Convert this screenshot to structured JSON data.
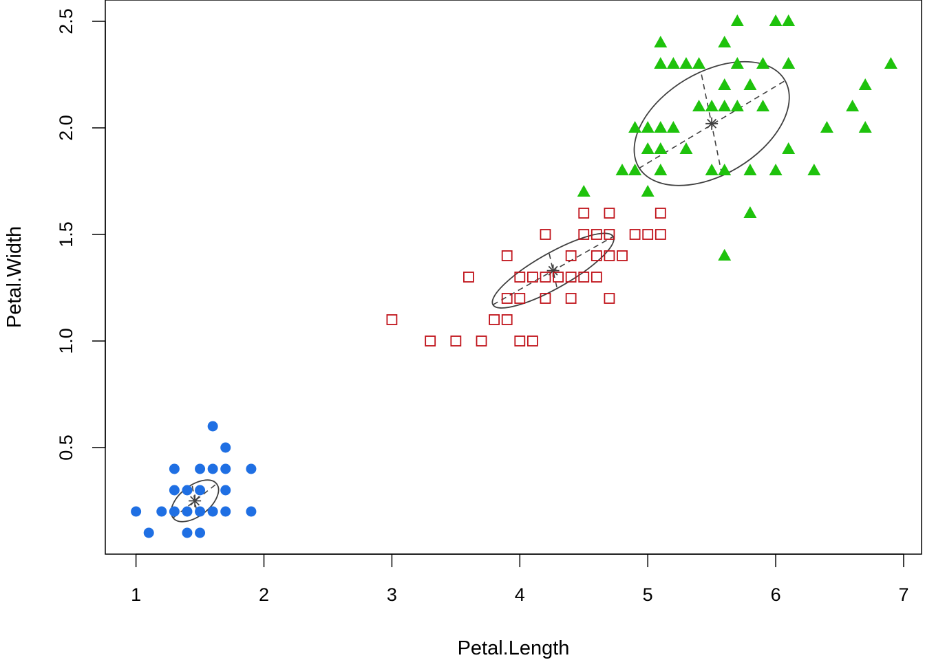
{
  "chart_data": {
    "type": "scatter",
    "xlabel": "Petal.Length",
    "ylabel": "Petal.Width",
    "xlim": [
      0.76,
      7.14
    ],
    "ylim": [
      0.0,
      2.6
    ],
    "x_ticks": [
      1,
      2,
      3,
      4,
      5,
      6,
      7
    ],
    "y_ticks": [
      0.5,
      1.0,
      1.5,
      2.0,
      2.5
    ],
    "x_tick_labels": [
      "1",
      "2",
      "3",
      "4",
      "5",
      "6",
      "7"
    ],
    "y_tick_labels": [
      "0.5",
      "1.0",
      "1.5",
      "2.0",
      "2.5"
    ],
    "grid": false,
    "legend": "none",
    "series": [
      {
        "marker": "filled-circle",
        "color": "#1f6fe3",
        "points": [
          [
            1.0,
            0.2
          ],
          [
            1.1,
            0.1
          ],
          [
            1.2,
            0.2
          ],
          [
            1.3,
            0.2
          ],
          [
            1.3,
            0.3
          ],
          [
            1.3,
            0.4
          ],
          [
            1.4,
            0.1
          ],
          [
            1.4,
            0.2
          ],
          [
            1.4,
            0.3
          ],
          [
            1.5,
            0.1
          ],
          [
            1.5,
            0.2
          ],
          [
            1.5,
            0.3
          ],
          [
            1.5,
            0.4
          ],
          [
            1.6,
            0.2
          ],
          [
            1.6,
            0.4
          ],
          [
            1.6,
            0.6
          ],
          [
            1.7,
            0.2
          ],
          [
            1.7,
            0.3
          ],
          [
            1.7,
            0.4
          ],
          [
            1.7,
            0.5
          ],
          [
            1.9,
            0.2
          ],
          [
            1.9,
            0.4
          ]
        ],
        "centroid": [
          1.46,
          0.25
        ],
        "ellipse": {
          "center": [
            1.46,
            0.25
          ],
          "axis1": [
            [
              1.29,
              0.17
            ],
            [
              1.63,
              0.33
            ]
          ],
          "axis2": [
            [
              1.44,
              0.32
            ],
            [
              1.48,
              0.18
            ]
          ]
        }
      },
      {
        "marker": "open-square",
        "color": "#c0121a",
        "points": [
          [
            3.0,
            1.1
          ],
          [
            3.3,
            1.0
          ],
          [
            3.5,
            1.0
          ],
          [
            3.6,
            1.3
          ],
          [
            3.7,
            1.0
          ],
          [
            3.8,
            1.1
          ],
          [
            3.9,
            1.1
          ],
          [
            3.9,
            1.2
          ],
          [
            3.9,
            1.4
          ],
          [
            4.0,
            1.0
          ],
          [
            4.0,
            1.2
          ],
          [
            4.0,
            1.3
          ],
          [
            4.1,
            1.0
          ],
          [
            4.1,
            1.3
          ],
          [
            4.2,
            1.2
          ],
          [
            4.2,
            1.3
          ],
          [
            4.2,
            1.5
          ],
          [
            4.3,
            1.3
          ],
          [
            4.4,
            1.2
          ],
          [
            4.4,
            1.3
          ],
          [
            4.4,
            1.4
          ],
          [
            4.5,
            1.3
          ],
          [
            4.5,
            1.5
          ],
          [
            4.5,
            1.6
          ],
          [
            4.6,
            1.3
          ],
          [
            4.6,
            1.4
          ],
          [
            4.6,
            1.5
          ],
          [
            4.7,
            1.2
          ],
          [
            4.7,
            1.4
          ],
          [
            4.7,
            1.5
          ],
          [
            4.7,
            1.6
          ],
          [
            4.8,
            1.4
          ],
          [
            4.9,
            1.5
          ],
          [
            5.0,
            1.5
          ],
          [
            5.1,
            1.5
          ],
          [
            5.1,
            1.6
          ]
        ],
        "centroid": [
          4.26,
          1.33
        ],
        "ellipse": {
          "center": [
            4.26,
            1.33
          ],
          "axis1": [
            [
              3.79,
              1.17
            ],
            [
              4.73,
              1.49
            ]
          ],
          "axis2": [
            [
              4.23,
              1.41
            ],
            [
              4.29,
              1.25
            ]
          ]
        }
      },
      {
        "marker": "filled-triangle",
        "color": "#1ec20c",
        "points": [
          [
            4.5,
            1.7
          ],
          [
            4.8,
            1.8
          ],
          [
            4.9,
            1.8
          ],
          [
            4.9,
            2.0
          ],
          [
            5.0,
            1.7
          ],
          [
            5.0,
            1.9
          ],
          [
            5.0,
            2.0
          ],
          [
            5.1,
            1.8
          ],
          [
            5.1,
            1.9
          ],
          [
            5.1,
            2.0
          ],
          [
            5.1,
            2.3
          ],
          [
            5.1,
            2.4
          ],
          [
            5.2,
            2.0
          ],
          [
            5.2,
            2.3
          ],
          [
            5.3,
            2.3
          ],
          [
            5.3,
            1.9
          ],
          [
            5.4,
            2.1
          ],
          [
            5.4,
            2.3
          ],
          [
            5.5,
            1.8
          ],
          [
            5.5,
            2.1
          ],
          [
            5.6,
            1.4
          ],
          [
            5.6,
            1.8
          ],
          [
            5.6,
            2.1
          ],
          [
            5.6,
            2.2
          ],
          [
            5.6,
            2.4
          ],
          [
            5.7,
            2.1
          ],
          [
            5.7,
            2.3
          ],
          [
            5.7,
            2.5
          ],
          [
            5.8,
            1.6
          ],
          [
            5.8,
            1.8
          ],
          [
            5.8,
            2.2
          ],
          [
            5.9,
            2.1
          ],
          [
            5.9,
            2.3
          ],
          [
            6.0,
            1.8
          ],
          [
            6.0,
            2.5
          ],
          [
            6.1,
            1.9
          ],
          [
            6.1,
            2.3
          ],
          [
            6.1,
            2.5
          ],
          [
            6.3,
            1.8
          ],
          [
            6.4,
            2.0
          ],
          [
            6.6,
            2.1
          ],
          [
            6.7,
            2.0
          ],
          [
            6.7,
            2.2
          ],
          [
            6.9,
            2.3
          ]
        ],
        "centroid": [
          5.5,
          2.02
        ],
        "ellipse": {
          "center": [
            5.5,
            2.02
          ],
          "axis1": [
            [
              4.93,
              1.81
            ],
            [
              6.07,
              2.22
            ]
          ],
          "axis2": [
            [
              5.42,
              2.25
            ],
            [
              5.58,
              1.78
            ]
          ]
        }
      }
    ]
  }
}
